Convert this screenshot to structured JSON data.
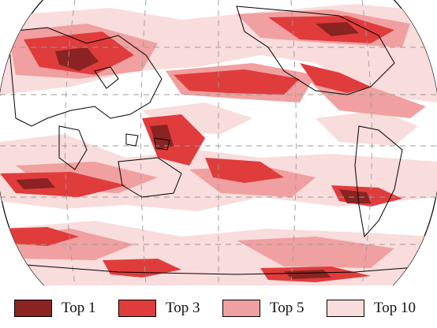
{
  "map": {
    "projection": "Robinson",
    "center_meridian": "Pacific",
    "graticule": "dashed",
    "colors": {
      "ocean_background": "#ffffff",
      "coastline": "#000000",
      "graticule": "#9a9a9a"
    }
  },
  "legend": {
    "items": [
      {
        "label": "Top 1",
        "color": "#8b2323"
      },
      {
        "label": "Top 3",
        "color": "#e03c3c"
      },
      {
        "label": "Top 5",
        "color": "#f0a0a0"
      },
      {
        "label": "Top 10",
        "color": "#f9dcdc"
      }
    ]
  }
}
